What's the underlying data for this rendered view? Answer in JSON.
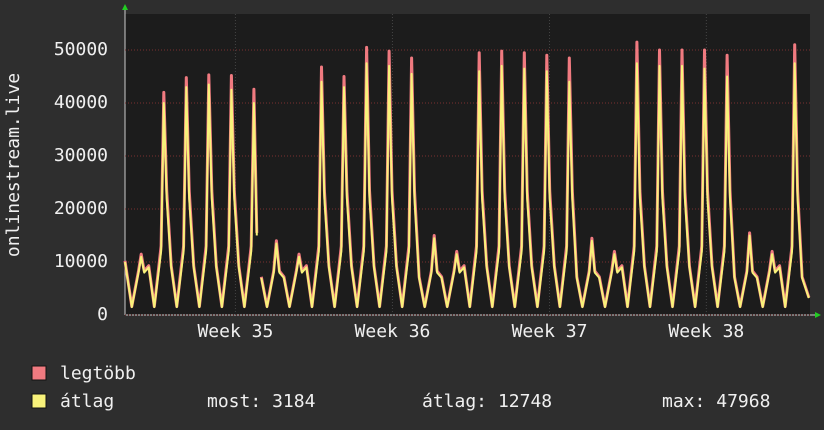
{
  "chart_data": {
    "type": "line",
    "y_label": "onlinestream.live",
    "xlim": [
      0,
      30.4
    ],
    "xticks": [
      {
        "value": 4.9,
        "label": "Week 35"
      },
      {
        "value": 11.87,
        "label": "Week 36"
      },
      {
        "value": 18.84,
        "label": "Week 37"
      },
      {
        "value": 25.8,
        "label": "Week 38"
      }
    ],
    "ylim": [
      0,
      56800
    ],
    "yticks": [
      0,
      10000,
      20000,
      30000,
      40000,
      50000
    ],
    "grid": true,
    "x": [
      0,
      0.3,
      0.6,
      0.72,
      0.85,
      1.05,
      1.3,
      1.6,
      1.72,
      1.85,
      2.05,
      2.3,
      2.6,
      2.72,
      2.85,
      3.05,
      3.3,
      3.6,
      3.72,
      3.85,
      4.05,
      4.3,
      4.6,
      4.72,
      4.85,
      5.05,
      5.3,
      5.6,
      5.72,
      5.85,
      5.95,
      6.05,
      6.3,
      6.6,
      6.72,
      6.85,
      7.05,
      7.3,
      7.6,
      7.72,
      7.85,
      8.05,
      8.3,
      8.6,
      8.72,
      8.85,
      9.05,
      9.3,
      9.6,
      9.72,
      9.85,
      10.05,
      10.3,
      10.6,
      10.72,
      10.85,
      11.05,
      11.3,
      11.6,
      11.72,
      11.85,
      12.05,
      12.3,
      12.6,
      12.72,
      12.85,
      13.05,
      13.3,
      13.6,
      13.72,
      13.85,
      14.05,
      14.3,
      14.6,
      14.72,
      14.85,
      15.05,
      15.3,
      15.6,
      15.72,
      15.85,
      16.05,
      16.3,
      16.6,
      16.72,
      16.85,
      17.05,
      17.3,
      17.6,
      17.72,
      17.85,
      18.05,
      18.3,
      18.6,
      18.72,
      18.85,
      19.05,
      19.3,
      19.6,
      19.72,
      19.85,
      20.05,
      20.3,
      20.6,
      20.72,
      20.85,
      21.05,
      21.3,
      21.6,
      21.72,
      21.85,
      22.05,
      22.3,
      22.6,
      22.72,
      22.85,
      23.05,
      23.3,
      23.6,
      23.72,
      23.85,
      24.05,
      24.3,
      24.6,
      24.72,
      24.85,
      25.05,
      25.3,
      25.6,
      25.72,
      25.85,
      26.05,
      26.3,
      26.6,
      26.72,
      26.85,
      27.05,
      27.3,
      27.6,
      27.72,
      27.85,
      28.05,
      28.3,
      28.6,
      28.72,
      28.85,
      29.05,
      29.3,
      29.6,
      29.72,
      29.85,
      30.05,
      30.35
    ],
    "series": [
      {
        "name": "legtöbb",
        "color": "#f07a80",
        "values": [
          10200,
          1600,
          8300,
          11500,
          8300,
          9300,
          1600,
          13000,
          42000,
          23500,
          9300,
          1600,
          13000,
          44800,
          23500,
          9300,
          1600,
          13000,
          45300,
          23500,
          9300,
          1600,
          13000,
          45200,
          23500,
          9300,
          1600,
          13000,
          42600,
          15500,
          null,
          7200,
          1600,
          8300,
          14000,
          8300,
          7200,
          1600,
          8300,
          11500,
          8300,
          9300,
          1600,
          13000,
          46800,
          23500,
          9300,
          1600,
          13000,
          45000,
          23500,
          9300,
          1600,
          13000,
          50500,
          23500,
          9300,
          1600,
          13000,
          49800,
          23500,
          9300,
          1600,
          13000,
          48500,
          23500,
          7200,
          1600,
          8300,
          15000,
          8300,
          7200,
          1600,
          8300,
          12000,
          8300,
          9300,
          1600,
          13000,
          49500,
          23500,
          9300,
          1600,
          13000,
          49800,
          23500,
          9300,
          1600,
          13000,
          49500,
          23500,
          9300,
          1600,
          13000,
          49000,
          23500,
          9300,
          1600,
          13000,
          48500,
          23500,
          7200,
          1600,
          8300,
          14500,
          8300,
          7200,
          1600,
          8300,
          12000,
          8300,
          9300,
          1600,
          13000,
          51500,
          23500,
          9300,
          1600,
          13000,
          50000,
          23500,
          9300,
          1600,
          13000,
          50000,
          23500,
          9300,
          1600,
          13000,
          50000,
          23500,
          9300,
          1600,
          13000,
          49000,
          23500,
          7200,
          1600,
          8300,
          15500,
          8300,
          7200,
          1600,
          8300,
          12000,
          8300,
          9300,
          1600,
          13000,
          51000,
          23500,
          7200,
          3300
        ]
      },
      {
        "name": "átlag",
        "color": "#f8f27a",
        "values": [
          10000,
          1500,
          8000,
          11000,
          8000,
          9000,
          1500,
          12000,
          40000,
          22000,
          9000,
          1500,
          12000,
          43000,
          22000,
          9000,
          1500,
          12000,
          43500,
          22000,
          9000,
          1500,
          12000,
          42500,
          22000,
          9000,
          1500,
          12000,
          40000,
          15000,
          null,
          7000,
          1500,
          8000,
          13500,
          8000,
          7000,
          1500,
          8000,
          11000,
          8000,
          9000,
          1500,
          12000,
          44000,
          22000,
          9000,
          1500,
          12000,
          43000,
          22000,
          9000,
          1500,
          12000,
          47500,
          22000,
          9000,
          1500,
          12000,
          47000,
          22000,
          9000,
          1500,
          12000,
          45500,
          22000,
          7000,
          1500,
          8000,
          14500,
          8000,
          7000,
          1500,
          8000,
          11500,
          8000,
          9000,
          1500,
          12000,
          46000,
          22000,
          9000,
          1500,
          12000,
          47000,
          22000,
          9000,
          1500,
          12000,
          46500,
          22000,
          9000,
          1500,
          12000,
          46000,
          22000,
          9000,
          1500,
          12000,
          44000,
          22000,
          7000,
          1500,
          8000,
          14000,
          8000,
          7000,
          1500,
          8000,
          11500,
          8000,
          9000,
          1500,
          12000,
          47500,
          22000,
          9000,
          1500,
          12000,
          47000,
          22000,
          9000,
          1500,
          12000,
          47000,
          22000,
          9000,
          1500,
          12000,
          46500,
          22000,
          9000,
          1500,
          12000,
          45000,
          22000,
          7000,
          1500,
          8000,
          15000,
          8000,
          7000,
          1500,
          8000,
          11500,
          8000,
          9000,
          1500,
          12000,
          47500,
          22000,
          7000,
          3184
        ]
      }
    ],
    "stats": [
      {
        "label": "most:",
        "value": 3184
      },
      {
        "label": "átlag:",
        "value": 12748
      },
      {
        "label": "max:",
        "value": 47968
      }
    ]
  }
}
